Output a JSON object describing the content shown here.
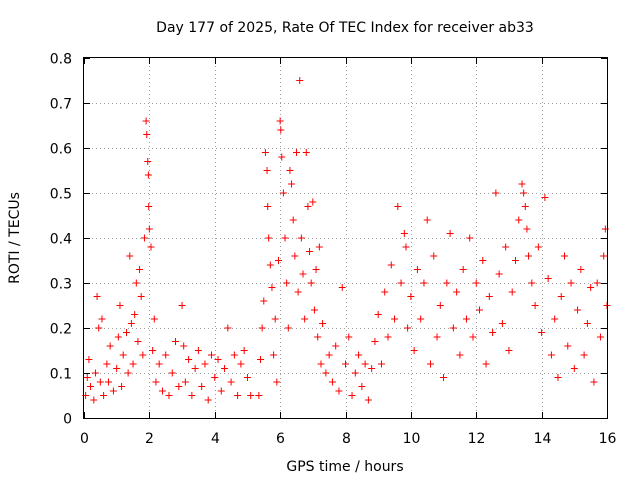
{
  "chart_data": {
    "type": "scatter",
    "title": "Day 177 of 2025, Rate Of TEC Index for receiver ab33",
    "xlabel": "GPS time / hours",
    "ylabel": "ROTI / TECUs",
    "xlim": [
      0,
      16
    ],
    "ylim": [
      0,
      0.8
    ],
    "xticks": [
      "0",
      "2",
      "4",
      "6",
      "8",
      "10",
      "12",
      "14",
      "16"
    ],
    "yticks": [
      "0",
      "0.1",
      "0.2",
      "0.3",
      "0.4",
      "0.5",
      "0.6",
      "0.7",
      "0.8"
    ],
    "grid": true,
    "marker": "+",
    "color": "#ff0000",
    "series": [
      {
        "name": "ROTI",
        "points": [
          [
            0.05,
            0.05
          ],
          [
            0.1,
            0.09
          ],
          [
            0.15,
            0.13
          ],
          [
            0.2,
            0.07
          ],
          [
            0.3,
            0.04
          ],
          [
            0.35,
            0.1
          ],
          [
            0.4,
            0.27
          ],
          [
            0.45,
            0.2
          ],
          [
            0.5,
            0.08
          ],
          [
            0.55,
            0.22
          ],
          [
            0.6,
            0.05
          ],
          [
            0.7,
            0.12
          ],
          [
            0.75,
            0.08
          ],
          [
            0.8,
            0.16
          ],
          [
            0.9,
            0.06
          ],
          [
            1.0,
            0.11
          ],
          [
            1.05,
            0.18
          ],
          [
            1.1,
            0.25
          ],
          [
            1.15,
            0.07
          ],
          [
            1.2,
            0.14
          ],
          [
            1.3,
            0.19
          ],
          [
            1.35,
            0.1
          ],
          [
            1.4,
            0.36
          ],
          [
            1.45,
            0.21
          ],
          [
            1.5,
            0.12
          ],
          [
            1.55,
            0.23
          ],
          [
            1.6,
            0.3
          ],
          [
            1.65,
            0.17
          ],
          [
            1.7,
            0.33
          ],
          [
            1.75,
            0.27
          ],
          [
            1.8,
            0.14
          ],
          [
            1.85,
            0.4
          ],
          [
            1.9,
            0.66
          ],
          [
            1.92,
            0.63
          ],
          [
            1.95,
            0.57
          ],
          [
            1.97,
            0.54
          ],
          [
            1.98,
            0.47
          ],
          [
            2.0,
            0.42
          ],
          [
            2.05,
            0.38
          ],
          [
            2.1,
            0.15
          ],
          [
            2.15,
            0.22
          ],
          [
            2.2,
            0.08
          ],
          [
            2.3,
            0.12
          ],
          [
            2.4,
            0.06
          ],
          [
            2.5,
            0.14
          ],
          [
            2.6,
            0.05
          ],
          [
            2.7,
            0.1
          ],
          [
            2.8,
            0.17
          ],
          [
            2.9,
            0.07
          ],
          [
            3.0,
            0.25
          ],
          [
            3.05,
            0.16
          ],
          [
            3.1,
            0.08
          ],
          [
            3.2,
            0.13
          ],
          [
            3.3,
            0.05
          ],
          [
            3.4,
            0.11
          ],
          [
            3.5,
            0.15
          ],
          [
            3.6,
            0.07
          ],
          [
            3.7,
            0.12
          ],
          [
            3.8,
            0.04
          ],
          [
            3.9,
            0.14
          ],
          [
            4.0,
            0.09
          ],
          [
            4.1,
            0.13
          ],
          [
            4.2,
            0.06
          ],
          [
            4.3,
            0.11
          ],
          [
            4.4,
            0.2
          ],
          [
            4.5,
            0.08
          ],
          [
            4.6,
            0.14
          ],
          [
            4.7,
            0.05
          ],
          [
            4.8,
            0.12
          ],
          [
            4.9,
            0.15
          ],
          [
            5.0,
            0.09
          ],
          [
            5.1,
            0.05
          ],
          [
            5.35,
            0.05
          ],
          [
            5.4,
            0.13
          ],
          [
            5.45,
            0.2
          ],
          [
            5.5,
            0.26
          ],
          [
            5.55,
            0.59
          ],
          [
            5.6,
            0.55
          ],
          [
            5.62,
            0.47
          ],
          [
            5.65,
            0.4
          ],
          [
            5.7,
            0.34
          ],
          [
            5.75,
            0.29
          ],
          [
            5.8,
            0.14
          ],
          [
            5.85,
            0.22
          ],
          [
            5.9,
            0.08
          ],
          [
            5.95,
            0.35
          ],
          [
            6.0,
            0.66
          ],
          [
            6.02,
            0.64
          ],
          [
            6.05,
            0.58
          ],
          [
            6.1,
            0.5
          ],
          [
            6.15,
            0.4
          ],
          [
            6.2,
            0.3
          ],
          [
            6.25,
            0.2
          ],
          [
            6.3,
            0.55
          ],
          [
            6.35,
            0.52
          ],
          [
            6.4,
            0.44
          ],
          [
            6.45,
            0.36
          ],
          [
            6.5,
            0.59
          ],
          [
            6.55,
            0.28
          ],
          [
            6.6,
            0.75
          ],
          [
            6.65,
            0.4
          ],
          [
            6.7,
            0.32
          ],
          [
            6.75,
            0.22
          ],
          [
            6.8,
            0.59
          ],
          [
            6.85,
            0.47
          ],
          [
            6.9,
            0.37
          ],
          [
            6.95,
            0.3
          ],
          [
            7.0,
            0.48
          ],
          [
            7.05,
            0.24
          ],
          [
            7.1,
            0.33
          ],
          [
            7.15,
            0.18
          ],
          [
            7.2,
            0.38
          ],
          [
            7.25,
            0.12
          ],
          [
            7.3,
            0.21
          ],
          [
            7.4,
            0.1
          ],
          [
            7.5,
            0.14
          ],
          [
            7.6,
            0.08
          ],
          [
            7.7,
            0.16
          ],
          [
            7.8,
            0.06
          ],
          [
            7.9,
            0.29
          ],
          [
            8.0,
            0.12
          ],
          [
            8.1,
            0.18
          ],
          [
            8.2,
            0.05
          ],
          [
            8.3,
            0.1
          ],
          [
            8.4,
            0.14
          ],
          [
            8.5,
            0.07
          ],
          [
            8.6,
            0.12
          ],
          [
            8.7,
            0.04
          ],
          [
            8.8,
            0.11
          ],
          [
            8.9,
            0.17
          ],
          [
            9.0,
            0.23
          ],
          [
            9.1,
            0.12
          ],
          [
            9.2,
            0.28
          ],
          [
            9.3,
            0.18
          ],
          [
            9.4,
            0.34
          ],
          [
            9.5,
            0.22
          ],
          [
            9.6,
            0.47
          ],
          [
            9.7,
            0.3
          ],
          [
            9.8,
            0.41
          ],
          [
            9.85,
            0.38
          ],
          [
            9.9,
            0.2
          ],
          [
            10.0,
            0.27
          ],
          [
            10.1,
            0.15
          ],
          [
            10.2,
            0.33
          ],
          [
            10.3,
            0.22
          ],
          [
            10.4,
            0.3
          ],
          [
            10.5,
            0.44
          ],
          [
            10.6,
            0.12
          ],
          [
            10.7,
            0.36
          ],
          [
            10.8,
            0.18
          ],
          [
            10.9,
            0.25
          ],
          [
            11.0,
            0.09
          ],
          [
            11.1,
            0.3
          ],
          [
            11.2,
            0.41
          ],
          [
            11.3,
            0.2
          ],
          [
            11.4,
            0.28
          ],
          [
            11.5,
            0.14
          ],
          [
            11.6,
            0.33
          ],
          [
            11.7,
            0.22
          ],
          [
            11.8,
            0.4
          ],
          [
            11.9,
            0.18
          ],
          [
            12.0,
            0.3
          ],
          [
            12.1,
            0.24
          ],
          [
            12.2,
            0.35
          ],
          [
            12.3,
            0.12
          ],
          [
            12.4,
            0.27
          ],
          [
            12.5,
            0.19
          ],
          [
            12.6,
            0.5
          ],
          [
            12.7,
            0.32
          ],
          [
            12.8,
            0.21
          ],
          [
            12.9,
            0.38
          ],
          [
            13.0,
            0.15
          ],
          [
            13.1,
            0.28
          ],
          [
            13.2,
            0.35
          ],
          [
            13.3,
            0.44
          ],
          [
            13.4,
            0.52
          ],
          [
            13.45,
            0.5
          ],
          [
            13.5,
            0.47
          ],
          [
            13.55,
            0.42
          ],
          [
            13.6,
            0.36
          ],
          [
            13.7,
            0.3
          ],
          [
            13.8,
            0.25
          ],
          [
            13.9,
            0.38
          ],
          [
            14.0,
            0.19
          ],
          [
            14.1,
            0.49
          ],
          [
            14.2,
            0.31
          ],
          [
            14.3,
            0.14
          ],
          [
            14.4,
            0.22
          ],
          [
            14.5,
            0.09
          ],
          [
            14.6,
            0.27
          ],
          [
            14.7,
            0.36
          ],
          [
            14.8,
            0.16
          ],
          [
            14.9,
            0.3
          ],
          [
            15.0,
            0.11
          ],
          [
            15.1,
            0.24
          ],
          [
            15.2,
            0.33
          ],
          [
            15.3,
            0.14
          ],
          [
            15.4,
            0.21
          ],
          [
            15.5,
            0.29
          ],
          [
            15.6,
            0.08
          ],
          [
            15.7,
            0.3
          ],
          [
            15.8,
            0.18
          ],
          [
            15.9,
            0.36
          ],
          [
            15.95,
            0.42
          ],
          [
            16.0,
            0.25
          ]
        ]
      }
    ]
  }
}
